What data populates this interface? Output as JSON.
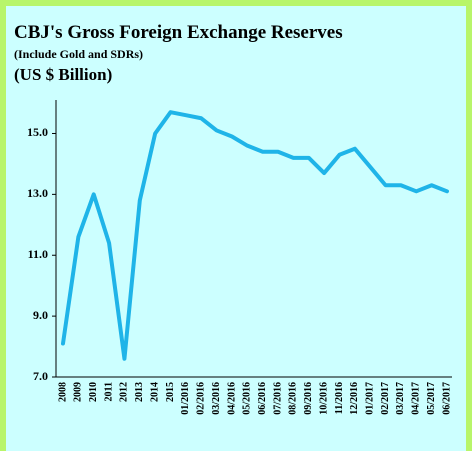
{
  "chart_data": {
    "type": "line",
    "title": "CBJ's Gross Foreign Exchange Reserves",
    "subtitle": "(Include Gold and SDRs)",
    "unit_label": "(US $ Billion)",
    "categories": [
      "2008",
      "2009",
      "2010",
      "2011",
      "2012",
      "2013",
      "2014",
      "2015",
      "01/2016",
      "02/2016",
      "03/2016",
      "04/2016",
      "05/2016",
      "06/2016",
      "07/2016",
      "08/2016",
      "09/2016",
      "10/2016",
      "11/2016",
      "12/2016",
      "01/2017",
      "02/2017",
      "03/2017",
      "04/2017",
      "05/2017",
      "06/2017"
    ],
    "series": [
      {
        "name": "Gross Foreign Exchange Reserves",
        "color": "#1fb4e8",
        "values": [
          8.1,
          11.6,
          13.0,
          11.4,
          7.6,
          12.8,
          15.0,
          15.7,
          15.6,
          15.5,
          15.1,
          14.9,
          14.6,
          14.4,
          14.4,
          14.2,
          14.2,
          13.7,
          14.3,
          14.5,
          13.9,
          13.3,
          13.3,
          13.1,
          13.3,
          13.1
        ]
      }
    ],
    "ylim": [
      7,
      16.1
    ],
    "yticks": [
      {
        "value": 7,
        "label": "7.0"
      },
      {
        "value": 9,
        "label": "9.0"
      },
      {
        "value": 11,
        "label": "11.0"
      },
      {
        "value": 13,
        "label": "13.0"
      },
      {
        "value": 15,
        "label": "15.0"
      }
    ],
    "grid": false
  }
}
